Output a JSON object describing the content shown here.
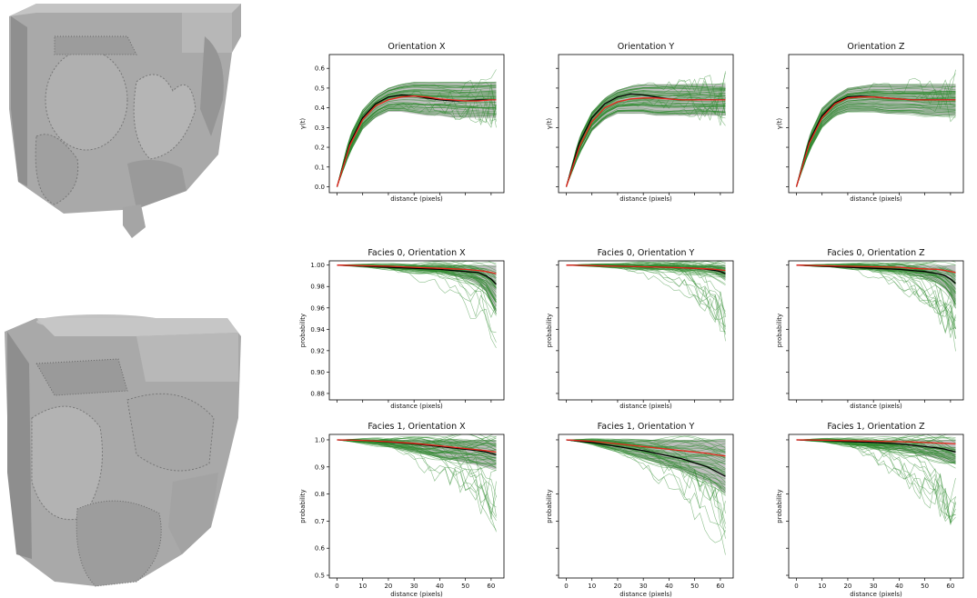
{
  "colors": {
    "ensemble": "#2e8b2e",
    "envelope": "#8a8a8a",
    "reference": "#000000",
    "mean": "#e8261c",
    "cube": "#a9a9a9"
  },
  "images": [
    {
      "name": "3d-pore-structure-top",
      "icon": "voxel-cube"
    },
    {
      "name": "3d-pore-structure-bottom",
      "icon": "voxel-cube"
    }
  ],
  "chart_data": [
    {
      "id": "r0c0",
      "type": "line",
      "title": "Orientation X",
      "xlabel": "distance (pixels)",
      "ylabel": "γ(t)",
      "xlim": [
        -3,
        65
      ],
      "ylim": [
        -0.03,
        0.67
      ],
      "xticks": [],
      "yticks": [
        0.0,
        0.1,
        0.2,
        0.3,
        0.4,
        0.5,
        0.6
      ],
      "reference": {
        "x": [
          0,
          5,
          10,
          15,
          20,
          25,
          30,
          35,
          40,
          45,
          50,
          55,
          60,
          62
        ],
        "y": [
          0.0,
          0.22,
          0.35,
          0.42,
          0.455,
          0.465,
          0.46,
          0.45,
          0.44,
          0.435,
          0.435,
          0.44,
          0.44,
          0.44
        ]
      },
      "mean": {
        "x": [
          0,
          5,
          10,
          15,
          20,
          25,
          30,
          35,
          40,
          45,
          50,
          55,
          60,
          62
        ],
        "y": [
          0.0,
          0.21,
          0.34,
          0.41,
          0.44,
          0.455,
          0.46,
          0.455,
          0.445,
          0.44,
          0.435,
          0.435,
          0.44,
          0.44
        ]
      },
      "envelope": {
        "x": [
          0,
          5,
          10,
          15,
          20,
          25,
          30,
          35,
          40,
          45,
          50,
          55,
          60,
          62
        ],
        "low": [
          0.0,
          0.17,
          0.29,
          0.35,
          0.38,
          0.38,
          0.37,
          0.36,
          0.36,
          0.35,
          0.35,
          0.35,
          0.35,
          0.35
        ],
        "high": [
          0.0,
          0.26,
          0.39,
          0.46,
          0.5,
          0.52,
          0.53,
          0.53,
          0.53,
          0.53,
          0.53,
          0.53,
          0.53,
          0.53
        ]
      },
      "ensemble_spread": 0.09
    },
    {
      "id": "r0c1",
      "type": "line",
      "title": "Orientation Y",
      "xlabel": "distance (pixels)",
      "ylabel": "γ(t)",
      "xlim": [
        -3,
        65
      ],
      "ylim": [
        -0.03,
        0.67
      ],
      "xticks": [],
      "yticks": [],
      "reference": {
        "x": [
          0,
          5,
          10,
          15,
          20,
          25,
          30,
          35,
          40,
          45,
          50,
          55,
          60,
          62
        ],
        "y": [
          0.0,
          0.22,
          0.35,
          0.42,
          0.455,
          0.47,
          0.465,
          0.455,
          0.445,
          0.44,
          0.44,
          0.44,
          0.44,
          0.44
        ]
      },
      "mean": {
        "x": [
          0,
          5,
          10,
          15,
          20,
          25,
          30,
          35,
          40,
          45,
          50,
          55,
          60,
          62
        ],
        "y": [
          0.0,
          0.2,
          0.33,
          0.4,
          0.43,
          0.445,
          0.45,
          0.45,
          0.445,
          0.44,
          0.44,
          0.44,
          0.44,
          0.44
        ]
      },
      "envelope": {
        "x": [
          0,
          5,
          10,
          15,
          20,
          25,
          30,
          35,
          40,
          45,
          50,
          55,
          60,
          62
        ],
        "low": [
          0.0,
          0.16,
          0.28,
          0.34,
          0.37,
          0.37,
          0.37,
          0.36,
          0.36,
          0.36,
          0.36,
          0.36,
          0.36,
          0.36
        ],
        "high": [
          0.0,
          0.25,
          0.38,
          0.45,
          0.49,
          0.51,
          0.52,
          0.52,
          0.52,
          0.52,
          0.52,
          0.52,
          0.52,
          0.52
        ]
      },
      "ensemble_spread": 0.09
    },
    {
      "id": "r0c2",
      "type": "line",
      "title": "Orientation Z",
      "xlabel": "distance (pixels)",
      "ylabel": "γ(t)",
      "xlim": [
        -3,
        65
      ],
      "ylim": [
        -0.03,
        0.67
      ],
      "xticks": [],
      "yticks": [],
      "reference": {
        "x": [
          0,
          5,
          10,
          15,
          20,
          25,
          30,
          35,
          40,
          45,
          50,
          55,
          60,
          62
        ],
        "y": [
          0.0,
          0.23,
          0.36,
          0.425,
          0.455,
          0.46,
          0.455,
          0.45,
          0.445,
          0.44,
          0.44,
          0.44,
          0.44,
          0.44
        ]
      },
      "mean": {
        "x": [
          0,
          5,
          10,
          15,
          20,
          25,
          30,
          35,
          40,
          45,
          50,
          55,
          60,
          62
        ],
        "y": [
          0.0,
          0.22,
          0.35,
          0.42,
          0.45,
          0.455,
          0.455,
          0.45,
          0.445,
          0.44,
          0.44,
          0.44,
          0.44,
          0.44
        ]
      },
      "envelope": {
        "x": [
          0,
          5,
          10,
          15,
          20,
          25,
          30,
          35,
          40,
          45,
          50,
          55,
          60,
          62
        ],
        "low": [
          0.0,
          0.18,
          0.3,
          0.36,
          0.38,
          0.38,
          0.38,
          0.37,
          0.37,
          0.37,
          0.36,
          0.36,
          0.36,
          0.36
        ],
        "high": [
          0.0,
          0.26,
          0.4,
          0.46,
          0.5,
          0.51,
          0.52,
          0.52,
          0.52,
          0.52,
          0.52,
          0.52,
          0.52,
          0.52
        ]
      },
      "ensemble_spread": 0.09
    },
    {
      "id": "r1c0",
      "type": "line",
      "title": "Facies 0, Orientation X",
      "xlabel": "distance (pixels)",
      "ylabel": "probability",
      "xlim": [
        -3,
        65
      ],
      "ylim": [
        0.874,
        1.004
      ],
      "xticks": [],
      "yticks": [
        0.88,
        0.9,
        0.92,
        0.94,
        0.96,
        0.98,
        1.0
      ],
      "reference": {
        "x": [
          0,
          10,
          20,
          30,
          40,
          45,
          50,
          55,
          58,
          60,
          62
        ],
        "y": [
          1.0,
          0.999,
          0.998,
          0.997,
          0.996,
          0.995,
          0.994,
          0.993,
          0.99,
          0.987,
          0.982
        ]
      },
      "mean": {
        "x": [
          0,
          10,
          20,
          30,
          40,
          45,
          50,
          55,
          58,
          60,
          62
        ],
        "y": [
          1.0,
          0.9995,
          0.999,
          0.998,
          0.997,
          0.9965,
          0.996,
          0.995,
          0.994,
          0.993,
          0.992
        ]
      },
      "envelope": {
        "x": [
          0,
          10,
          20,
          30,
          40,
          45,
          50,
          55,
          58,
          60,
          62
        ],
        "low": [
          1.0,
          0.999,
          0.997,
          0.995,
          0.993,
          0.99,
          0.987,
          0.982,
          0.975,
          0.965,
          0.955
        ],
        "high": [
          1.0,
          1.0,
          1.0,
          1.0,
          1.0,
          1.0,
          1.0,
          1.0,
          1.0,
          1.0,
          1.0
        ]
      },
      "ensemble_spread": 0.06
    },
    {
      "id": "r1c1",
      "type": "line",
      "title": "Facies 0, Orientation Y",
      "xlabel": "distance (pixels)",
      "ylabel": "probability",
      "xlim": [
        -3,
        65
      ],
      "ylim": [
        0.874,
        1.004
      ],
      "xticks": [],
      "yticks": [],
      "reference": {
        "x": [
          0,
          10,
          20,
          30,
          40,
          45,
          50,
          55,
          58,
          60,
          62
        ],
        "y": [
          1.0,
          0.9995,
          0.999,
          0.9985,
          0.998,
          0.9975,
          0.997,
          0.996,
          0.995,
          0.994,
          0.992
        ]
      },
      "mean": {
        "x": [
          0,
          10,
          20,
          30,
          40,
          45,
          50,
          55,
          58,
          60,
          62
        ],
        "y": [
          1.0,
          0.9995,
          0.999,
          0.9985,
          0.998,
          0.9975,
          0.997,
          0.9965,
          0.996,
          0.9955,
          0.995
        ]
      },
      "envelope": {
        "x": [
          0,
          10,
          20,
          30,
          40,
          45,
          50,
          55,
          58,
          60,
          62
        ],
        "low": [
          1.0,
          0.9995,
          0.999,
          0.998,
          0.997,
          0.996,
          0.995,
          0.994,
          0.992,
          0.99,
          0.987
        ],
        "high": [
          1.0,
          1.0,
          1.0,
          1.0,
          1.0,
          1.0,
          1.0,
          1.0,
          1.0,
          1.0,
          1.0
        ]
      },
      "ensemble_spread": 0.06
    },
    {
      "id": "r1c2",
      "type": "line",
      "title": "Facies 0, Orientation Z",
      "xlabel": "distance (pixels)",
      "ylabel": "probability",
      "xlim": [
        -3,
        65
      ],
      "ylim": [
        0.874,
        1.004
      ],
      "xticks": [],
      "yticks": [],
      "reference": {
        "x": [
          0,
          10,
          20,
          30,
          40,
          45,
          50,
          55,
          58,
          60,
          62
        ],
        "y": [
          1.0,
          0.999,
          0.998,
          0.997,
          0.996,
          0.995,
          0.994,
          0.992,
          0.99,
          0.987,
          0.983
        ]
      },
      "mean": {
        "x": [
          0,
          10,
          20,
          30,
          40,
          45,
          50,
          55,
          58,
          60,
          62
        ],
        "y": [
          1.0,
          0.9995,
          0.999,
          0.9985,
          0.998,
          0.997,
          0.9965,
          0.996,
          0.995,
          0.994,
          0.993
        ]
      },
      "envelope": {
        "x": [
          0,
          10,
          20,
          30,
          40,
          45,
          50,
          55,
          58,
          60,
          62
        ],
        "low": [
          1.0,
          0.999,
          0.998,
          0.996,
          0.994,
          0.991,
          0.988,
          0.983,
          0.977,
          0.97,
          0.96
        ],
        "high": [
          1.0,
          1.0,
          1.0,
          1.0,
          1.0,
          1.0,
          1.0,
          1.0,
          1.0,
          1.0,
          1.0
        ]
      },
      "ensemble_spread": 0.06
    },
    {
      "id": "r2c0",
      "type": "line",
      "title": "Facies 1, Orientation X",
      "xlabel": "distance (pixels)",
      "ylabel": "probability",
      "xlim": [
        -3,
        65
      ],
      "ylim": [
        0.49,
        1.02
      ],
      "xticks": [
        0,
        10,
        20,
        30,
        40,
        50,
        60
      ],
      "yticks": [
        0.5,
        0.6,
        0.7,
        0.8,
        0.9,
        1.0
      ],
      "reference": {
        "x": [
          0,
          10,
          20,
          30,
          40,
          45,
          50,
          55,
          58,
          60,
          62
        ],
        "y": [
          1.0,
          0.998,
          0.992,
          0.985,
          0.975,
          0.97,
          0.965,
          0.96,
          0.955,
          0.95,
          0.945
        ]
      },
      "mean": {
        "x": [
          0,
          10,
          20,
          30,
          40,
          45,
          50,
          55,
          58,
          60,
          62
        ],
        "y": [
          1.0,
          0.998,
          0.993,
          0.987,
          0.978,
          0.973,
          0.968,
          0.963,
          0.96,
          0.957,
          0.955
        ]
      },
      "envelope": {
        "x": [
          0,
          10,
          20,
          30,
          40,
          45,
          50,
          55,
          58,
          60,
          62
        ],
        "low": [
          1.0,
          0.99,
          0.975,
          0.955,
          0.935,
          0.925,
          0.915,
          0.905,
          0.9,
          0.895,
          0.89
        ],
        "high": [
          1.0,
          1.0,
          1.0,
          1.0,
          1.0,
          1.0,
          1.0,
          1.0,
          1.0,
          1.0,
          1.0
        ]
      },
      "ensemble_spread": 0.3
    },
    {
      "id": "r2c1",
      "type": "line",
      "title": "Facies 1, Orientation Y",
      "xlabel": "distance (pixels)",
      "ylabel": "probability",
      "xlim": [
        -3,
        65
      ],
      "ylim": [
        0.49,
        1.02
      ],
      "xticks": [
        0,
        10,
        20,
        30,
        40,
        50,
        60
      ],
      "yticks": [],
      "reference": {
        "x": [
          0,
          10,
          20,
          30,
          40,
          45,
          50,
          55,
          58,
          60,
          62
        ],
        "y": [
          1.0,
          0.99,
          0.975,
          0.96,
          0.94,
          0.93,
          0.915,
          0.9,
          0.885,
          0.875,
          0.865
        ]
      },
      "mean": {
        "x": [
          0,
          10,
          20,
          30,
          40,
          45,
          50,
          55,
          58,
          60,
          62
        ],
        "y": [
          1.0,
          0.995,
          0.985,
          0.975,
          0.965,
          0.96,
          0.955,
          0.95,
          0.945,
          0.943,
          0.94
        ]
      },
      "envelope": {
        "x": [
          0,
          10,
          20,
          30,
          40,
          45,
          50,
          55,
          58,
          60,
          62
        ],
        "low": [
          1.0,
          0.985,
          0.96,
          0.93,
          0.9,
          0.885,
          0.865,
          0.845,
          0.83,
          0.815,
          0.8
        ],
        "high": [
          1.0,
          1.0,
          1.0,
          1.0,
          1.0,
          1.0,
          1.0,
          1.0,
          1.0,
          1.0,
          1.0
        ]
      },
      "ensemble_spread": 0.3
    },
    {
      "id": "r2c2",
      "type": "line",
      "title": "Facies 1, Orientation Z",
      "xlabel": "distance (pixels)",
      "ylabel": "probability",
      "xlim": [
        -3,
        65
      ],
      "ylim": [
        0.49,
        1.02
      ],
      "xticks": [
        0,
        10,
        20,
        30,
        40,
        50,
        60
      ],
      "yticks": [],
      "reference": {
        "x": [
          0,
          10,
          20,
          30,
          40,
          45,
          50,
          55,
          58,
          60,
          62
        ],
        "y": [
          1.0,
          0.998,
          0.994,
          0.99,
          0.985,
          0.98,
          0.975,
          0.97,
          0.965,
          0.96,
          0.955
        ]
      },
      "mean": {
        "x": [
          0,
          10,
          20,
          30,
          40,
          45,
          50,
          55,
          58,
          60,
          62
        ],
        "y": [
          1.0,
          0.999,
          0.997,
          0.995,
          0.993,
          0.992,
          0.99,
          0.988,
          0.987,
          0.986,
          0.985
        ]
      },
      "envelope": {
        "x": [
          0,
          10,
          20,
          30,
          40,
          45,
          50,
          55,
          58,
          60,
          62
        ],
        "low": [
          1.0,
          0.995,
          0.985,
          0.975,
          0.96,
          0.95,
          0.94,
          0.93,
          0.92,
          0.915,
          0.91
        ],
        "high": [
          1.0,
          1.0,
          1.0,
          1.0,
          1.0,
          1.0,
          1.0,
          1.0,
          1.0,
          1.0,
          1.0
        ]
      },
      "ensemble_spread": 0.3
    }
  ]
}
